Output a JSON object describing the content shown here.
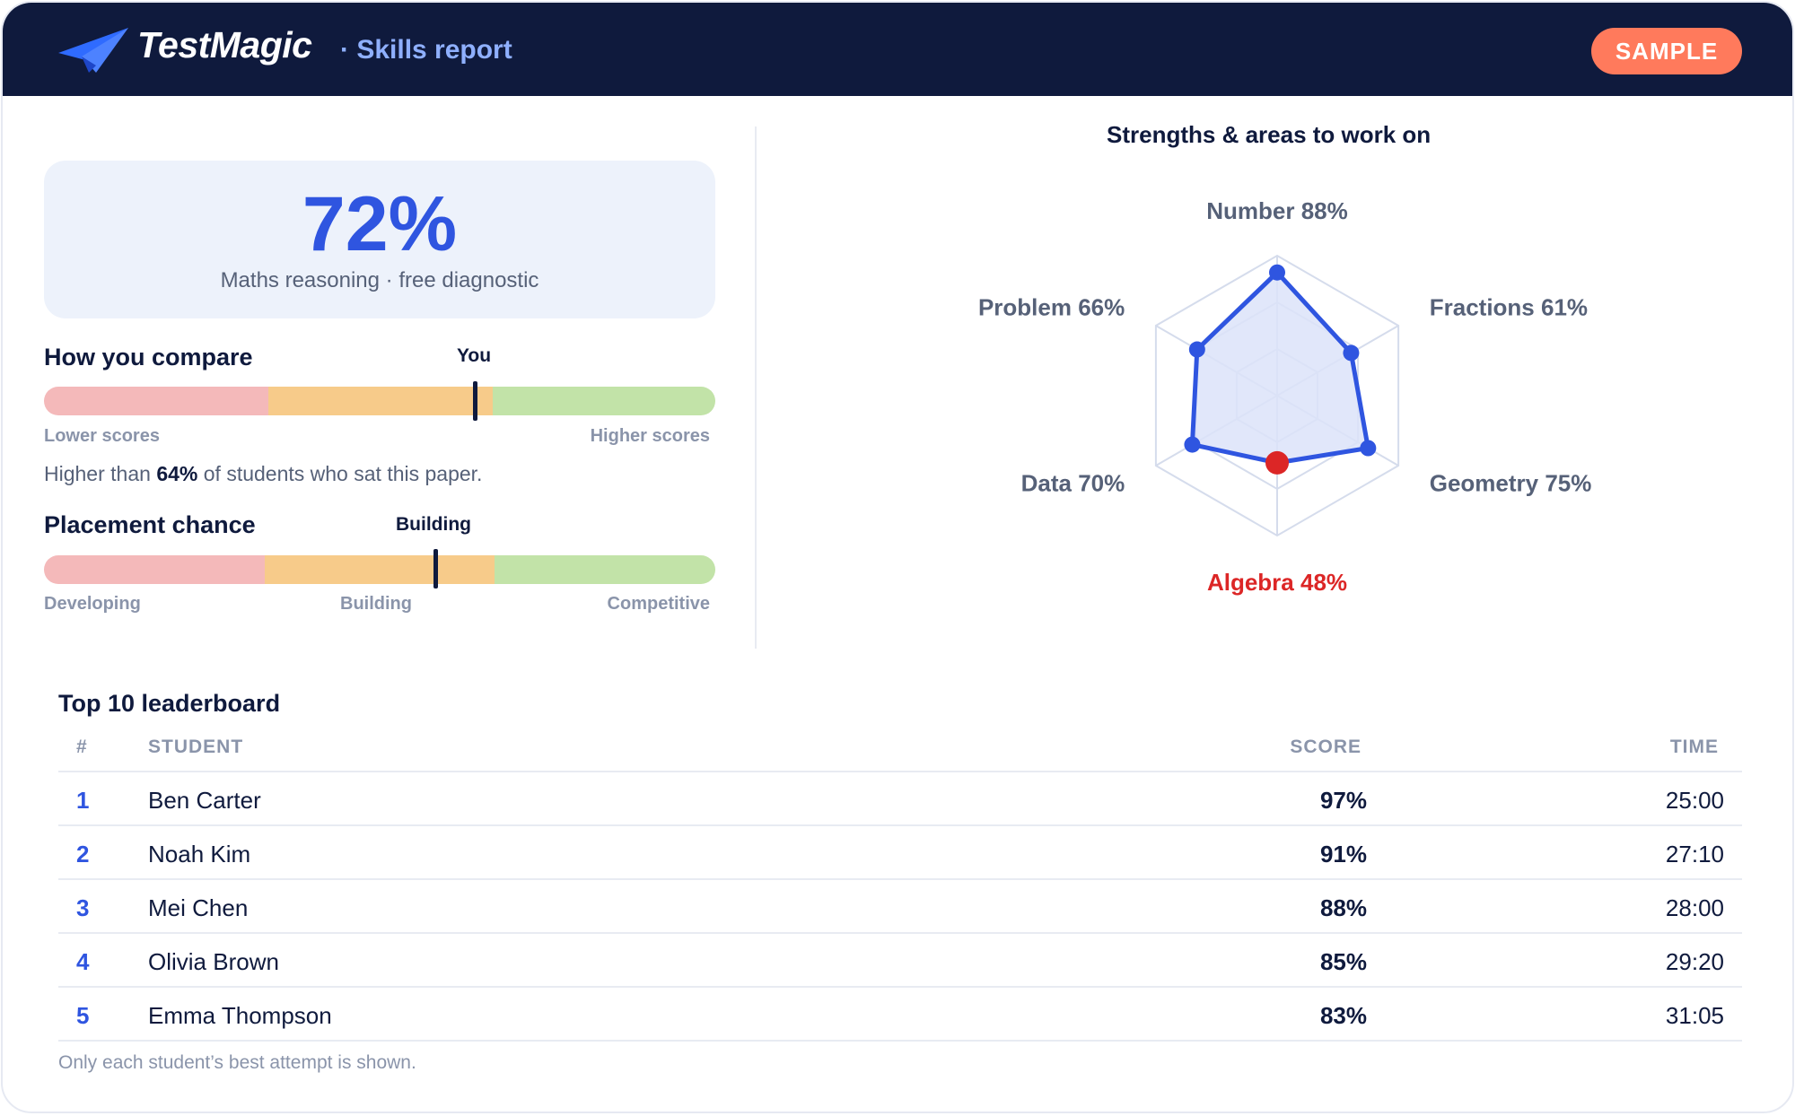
{
  "header": {
    "brand": "TestMagic",
    "subtitle": "· Skills report",
    "badge": "SAMPLE"
  },
  "score": {
    "value": "72%",
    "label": "Maths reasoning · free diagnostic"
  },
  "compare": {
    "title": "How you compare",
    "marker_label": "You",
    "marker_percent": 64,
    "left_label": "Lower scores",
    "right_label": "Higher scores",
    "text_prefix": "Higher than ",
    "text_value": "64%",
    "text_suffix": " of students who sat this paper."
  },
  "placement": {
    "title": "Placement chance",
    "marker_label": "Building",
    "labels": [
      "Developing",
      "Building",
      "Competitive"
    ]
  },
  "radar": {
    "title": "Strengths & areas to work on",
    "axes": [
      {
        "label": "Number 88%",
        "value": 88
      },
      {
        "label": "Fractions 61%",
        "value": 61
      },
      {
        "label": "Geometry 75%",
        "value": 75
      },
      {
        "label": "Algebra 48%",
        "value": 48,
        "weakest": true
      },
      {
        "label": "Data 70%",
        "value": 70
      },
      {
        "label": "Problem 66%",
        "value": 66
      }
    ],
    "colors": {
      "line": "#2f55e0",
      "fill": "#dce3f9",
      "weak": "#dc2626",
      "grid": "#d5dcec"
    }
  },
  "leaderboard": {
    "title": "Top 10 leaderboard",
    "headers": {
      "rank": "#",
      "student": "STUDENT",
      "score": "SCORE",
      "time": "TIME"
    },
    "rows": [
      {
        "rank": "1",
        "name": "Ben Carter",
        "score": "97%",
        "time": "25:00"
      },
      {
        "rank": "2",
        "name": "Noah Kim",
        "score": "91%",
        "time": "27:10"
      },
      {
        "rank": "3",
        "name": "Mei Chen",
        "score": "88%",
        "time": "28:00"
      },
      {
        "rank": "4",
        "name": "Olivia Brown",
        "score": "85%",
        "time": "29:20"
      },
      {
        "rank": "5",
        "name": "Emma Thompson",
        "score": "83%",
        "time": "31:05"
      }
    ],
    "footnote": "Only each student’s best attempt is shown."
  }
}
